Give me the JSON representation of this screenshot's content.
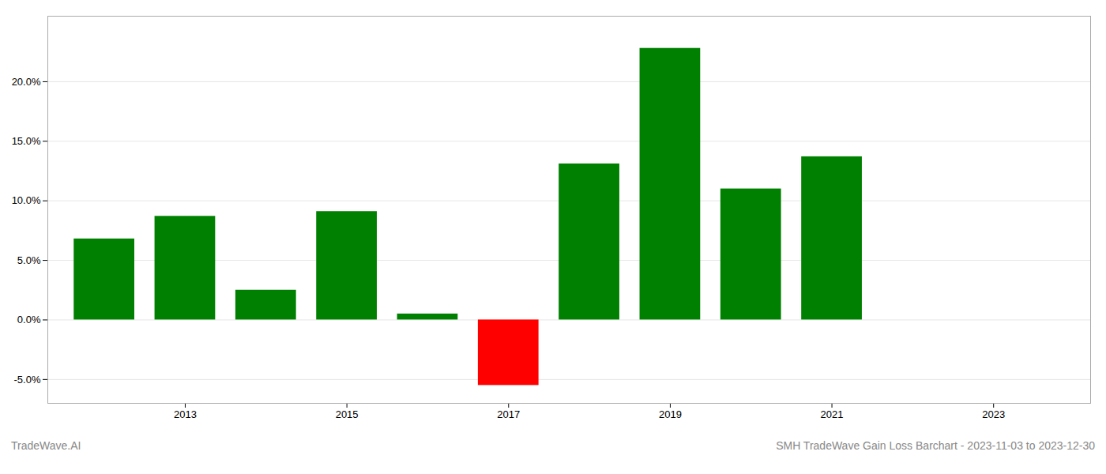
{
  "chart_data": {
    "type": "bar",
    "x": [
      2012,
      2013,
      2014,
      2015,
      2016,
      2017,
      2018,
      2019,
      2020,
      2021
    ],
    "values": [
      6.8,
      8.7,
      2.5,
      9.1,
      0.5,
      -5.5,
      13.1,
      22.8,
      11.0,
      13.7
    ],
    "colors": [
      "#008000",
      "#008000",
      "#008000",
      "#008000",
      "#008000",
      "#ff0000",
      "#008000",
      "#008000",
      "#008000",
      "#008000"
    ],
    "xlim": [
      2011.3,
      2024.2
    ],
    "xticks": [
      2013,
      2015,
      2017,
      2019,
      2021,
      2023
    ],
    "ylim": [
      -7.0,
      25.5
    ],
    "yticks": [
      {
        "value": -5.0,
        "label": "-5.0%"
      },
      {
        "value": 0.0,
        "label": "0.0%"
      },
      {
        "value": 5.0,
        "label": "5.0%"
      },
      {
        "value": 10.0,
        "label": "10.0%"
      },
      {
        "value": 15.0,
        "label": "15.0%"
      },
      {
        "value": 20.0,
        "label": "20.0%"
      }
    ],
    "grid": true,
    "annotations": [
      "TradeWave.AI",
      "SMH TradeWave Gain Loss Barchart - 2023-11-03 to 2023-12-30"
    ]
  }
}
